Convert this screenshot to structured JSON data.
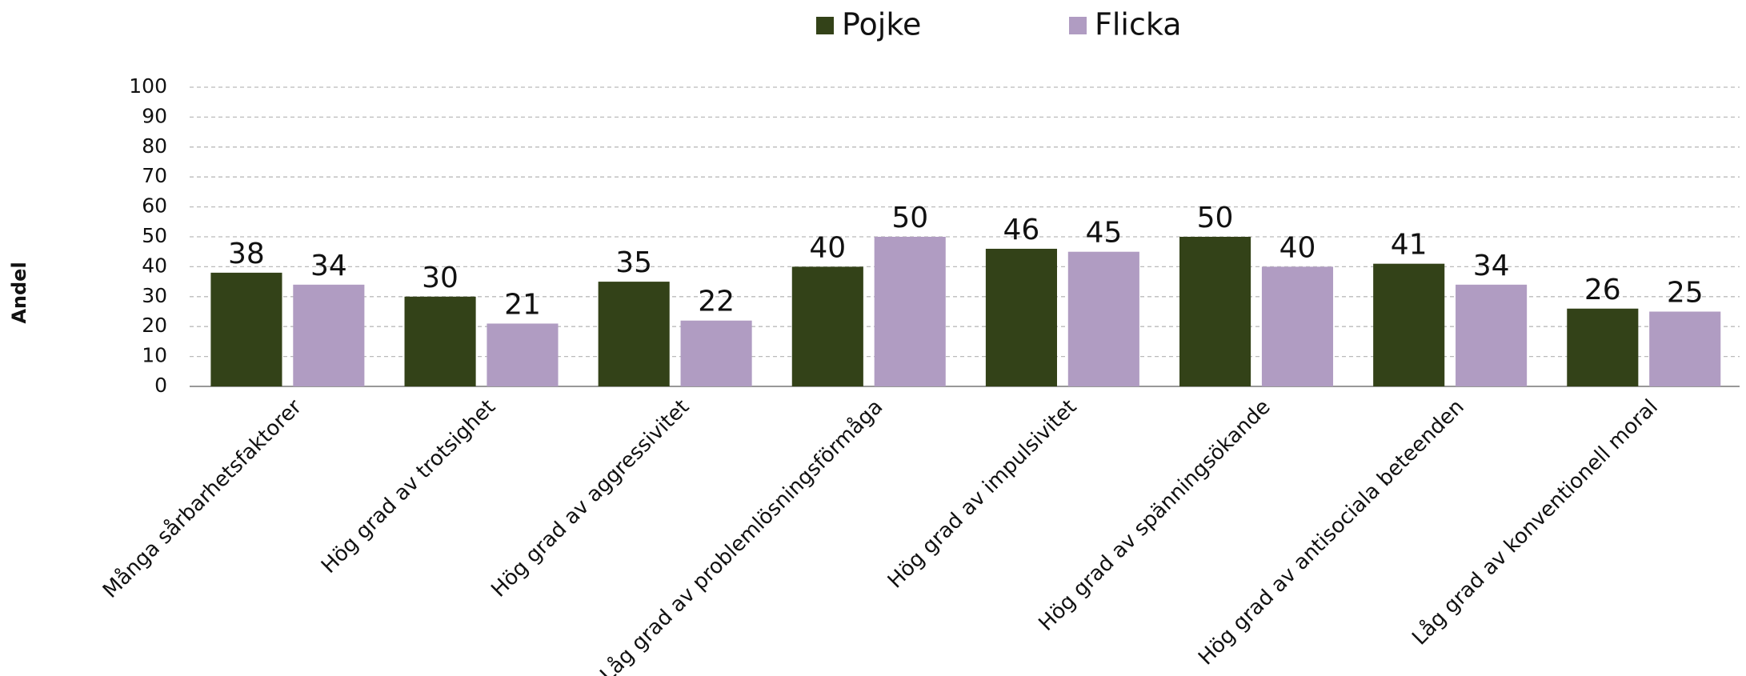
{
  "chart_data": {
    "type": "bar",
    "y_label": "Andel",
    "categories": [
      "Många sårbarhetsfaktorer",
      "Hög grad av trotsighet",
      "Hög grad av aggressivitet",
      "Låg grad av problemlösningsförmåga",
      "Hög grad av impulsivitet",
      "Hög grad av spänningsökande",
      "Hög grad av antisociala beteenden",
      "Låg grad av konventionell moral"
    ],
    "series": [
      {
        "name": "Pojke",
        "color": "#334218",
        "values": [
          38,
          30,
          35,
          40,
          46,
          50,
          41,
          26
        ]
      },
      {
        "name": "Flicka",
        "color": "#b09cc2",
        "values": [
          34,
          21,
          22,
          50,
          45,
          40,
          34,
          25
        ]
      }
    ],
    "ylim": [
      0,
      100
    ],
    "yticks": [
      0,
      10,
      20,
      30,
      40,
      50,
      60,
      70,
      80,
      90,
      100
    ],
    "grid": true,
    "legend": "top"
  }
}
